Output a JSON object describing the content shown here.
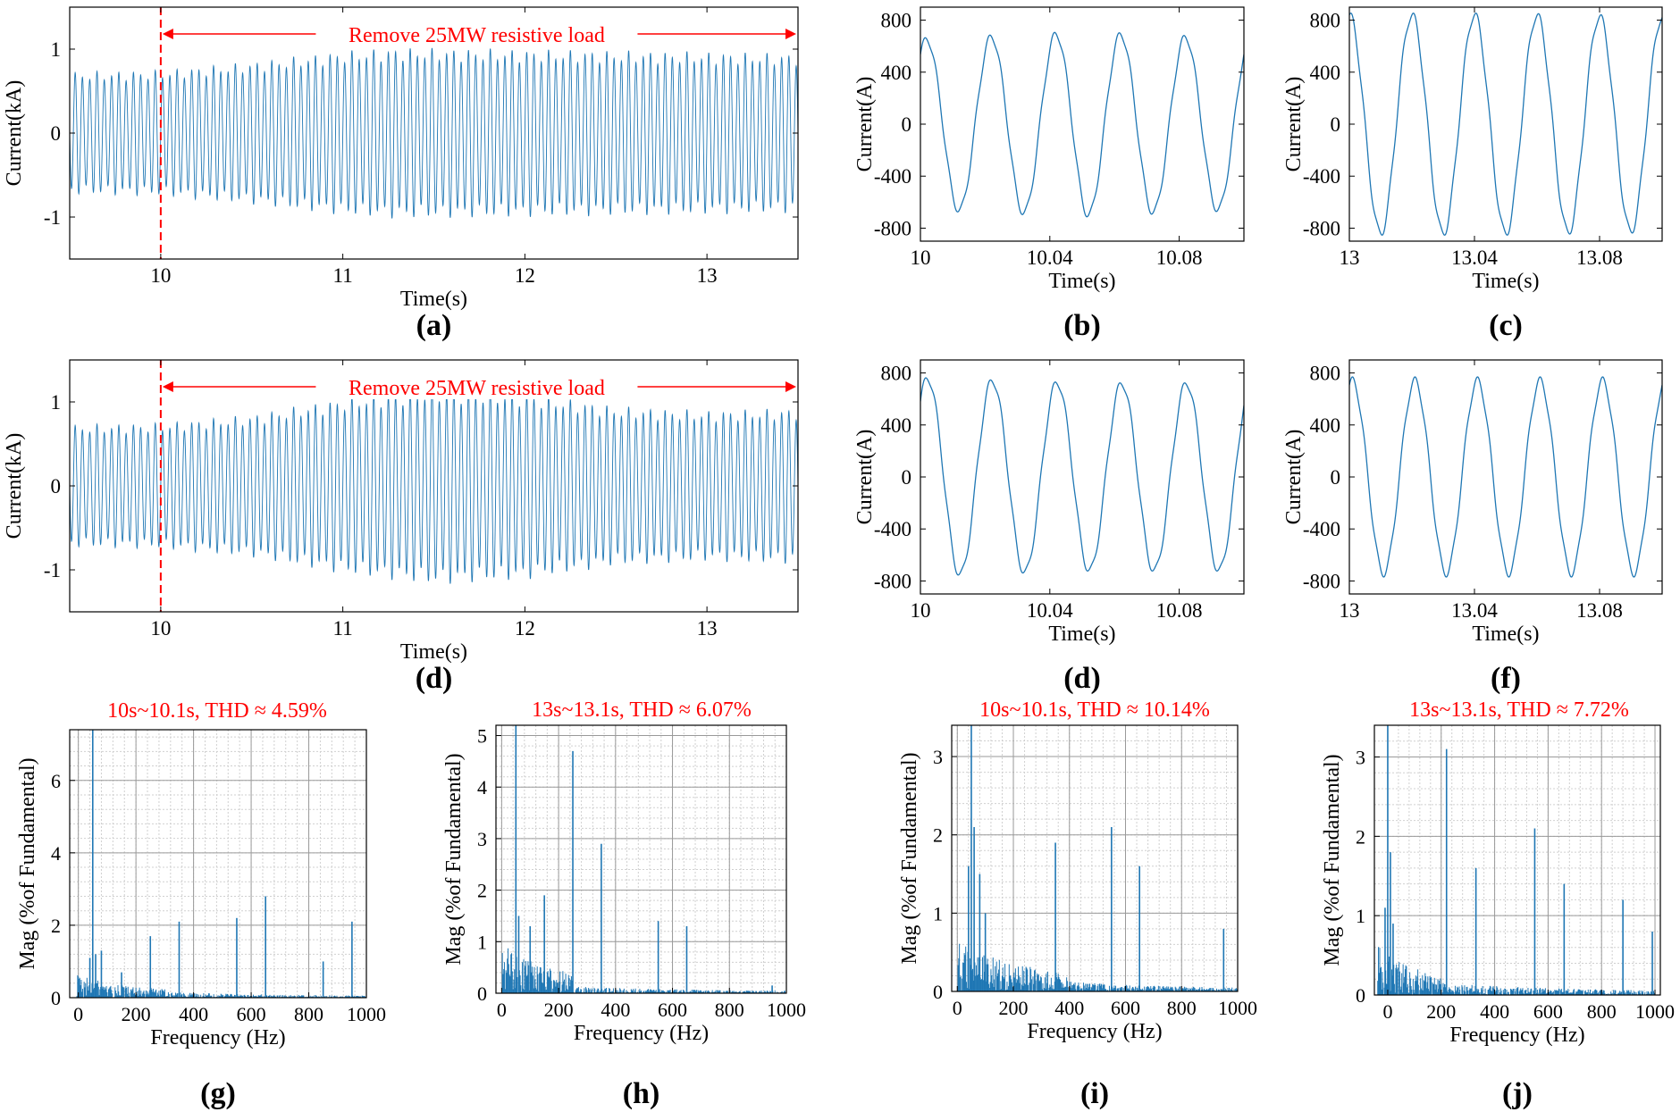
{
  "figure": {
    "wave_color": "#1f77b4",
    "annotation_color": "#ff0000"
  },
  "chart_data": [
    {
      "id": "a",
      "label": "(a)",
      "type": "line",
      "title": "",
      "xlabel": "Time(s)",
      "ylabel": "Current(kA)",
      "xlim": [
        9.5,
        13.5
      ],
      "ylim": [
        -1.5,
        1.5
      ],
      "xticks": [
        10,
        11,
        12,
        13
      ],
      "xtick_labels": [
        "10",
        "11",
        "12",
        "13"
      ],
      "yticks": [
        -1,
        0,
        1
      ],
      "ytick_labels": [
        "-1",
        "0",
        "1"
      ],
      "event_time": 10,
      "annotation": "Remove 25MW resistive load",
      "frequency_hz": 50,
      "envelope": {
        "x": [
          9.5,
          10.0,
          10.5,
          11.0,
          11.3,
          12.0,
          13.0,
          13.5
        ],
        "y": [
          0.73,
          0.75,
          0.85,
          0.98,
          1.02,
          1.0,
          0.97,
          0.95
        ]
      }
    },
    {
      "id": "b",
      "label": "(b)",
      "type": "line",
      "xlabel": "Time(s)",
      "ylabel": "Current(A)",
      "xlim": [
        10,
        10.1
      ],
      "ylim": [
        -900,
        900
      ],
      "xticks": [
        10,
        10.04,
        10.08
      ],
      "xtick_labels": [
        "10",
        "10.04",
        "10.08"
      ],
      "yticks": [
        -800,
        -400,
        0,
        400,
        800
      ],
      "ytick_labels": [
        "-800",
        "-400",
        "0",
        "400",
        "800"
      ],
      "frequency_hz": 50,
      "phase": 0.3,
      "envelope": {
        "x": [
          10,
          10.05,
          10.1
        ],
        "y": [
          650,
          700,
          650
        ]
      }
    },
    {
      "id": "c",
      "label": "(c)",
      "type": "line",
      "xlabel": "Time(s)",
      "ylabel": "Current(A)",
      "xlim": [
        13,
        13.1
      ],
      "ylim": [
        -900,
        900
      ],
      "xticks": [
        13,
        13.04,
        13.08
      ],
      "xtick_labels": [
        "13",
        "13.04",
        "13.08"
      ],
      "yticks": [
        -800,
        -400,
        0,
        400,
        800
      ],
      "ytick_labels": [
        "-800",
        "-400",
        "0",
        "400",
        "800"
      ],
      "frequency_hz": 50,
      "phase": 0.0,
      "envelope": {
        "x": [
          13,
          13.05,
          13.1
        ],
        "y": [
          840,
          840,
          820
        ]
      }
    },
    {
      "id": "d",
      "label": "(d)",
      "type": "line",
      "xlabel": "Time(s)",
      "ylabel": "Current(kA)",
      "xlim": [
        9.5,
        13.5
      ],
      "ylim": [
        -1.5,
        1.5
      ],
      "xticks": [
        10,
        11,
        12,
        13
      ],
      "xtick_labels": [
        "10",
        "11",
        "12",
        "13"
      ],
      "yticks": [
        -1,
        0,
        1
      ],
      "ytick_labels": [
        "-1",
        "0",
        "1"
      ],
      "event_time": 10,
      "annotation": "Remove 25MW resistive load",
      "frequency_hz": 50,
      "envelope": {
        "x": [
          9.5,
          10.0,
          10.5,
          11.0,
          11.5,
          12.0,
          12.5,
          13.0,
          13.5
        ],
        "y": [
          0.73,
          0.75,
          0.85,
          1.05,
          1.18,
          1.12,
          0.95,
          0.9,
          0.93
        ]
      }
    },
    {
      "id": "e",
      "label": "(d)",
      "type": "line",
      "xlabel": "Time(s)",
      "ylabel": "Current(A)",
      "xlim": [
        10,
        10.1
      ],
      "ylim": [
        -900,
        900
      ],
      "xticks": [
        10,
        10.04,
        10.08
      ],
      "xtick_labels": [
        "10",
        "10.04",
        "10.08"
      ],
      "yticks": [
        -800,
        -400,
        0,
        400,
        800
      ],
      "ytick_labels": [
        "-800",
        "-400",
        "0",
        "400",
        "800"
      ],
      "frequency_hz": 50,
      "phase": 0.35,
      "envelope": {
        "x": [
          10,
          10.05,
          10.1
        ],
        "y": [
          760,
          720,
          720
        ]
      }
    },
    {
      "id": "f",
      "label": "(f)",
      "type": "line",
      "xlabel": "Time(s)",
      "ylabel": "Current(A)",
      "xlim": [
        13,
        13.1
      ],
      "ylim": [
        -900,
        900
      ],
      "xticks": [
        13,
        13.04,
        13.08
      ],
      "xtick_labels": [
        "13",
        "13.04",
        "13.08"
      ],
      "yticks": [
        -800,
        -400,
        0,
        400,
        800
      ],
      "ytick_labels": [
        "-800",
        "-400",
        "0",
        "400",
        "800"
      ],
      "frequency_hz": 50,
      "phase": 0.15,
      "envelope": {
        "x": [
          13,
          13.05,
          13.1
        ],
        "y": [
          740,
          740,
          740
        ]
      }
    },
    {
      "id": "g",
      "label": "(g)",
      "type": "bar",
      "title": "10s~10.1s, THD ≈   4.59%",
      "xlabel": "Frequency (Hz)",
      "ylabel": "Mag (%of Fundamental)",
      "xlim": [
        -30,
        1000
      ],
      "ylim": [
        0,
        7.4
      ],
      "xticks": [
        0,
        200,
        400,
        600,
        800,
        1000
      ],
      "xtick_labels": [
        "0",
        "200",
        "400",
        "600",
        "800",
        "1000"
      ],
      "yticks": [
        0,
        2,
        4,
        6
      ],
      "ytick_labels": [
        "0",
        "2",
        "4",
        "6"
      ],
      "peaks": [
        [
          50,
          7.4
        ],
        [
          40,
          1.1
        ],
        [
          60,
          1.2
        ],
        [
          80,
          1.3
        ],
        [
          150,
          0.7
        ],
        [
          250,
          1.7
        ],
        [
          350,
          2.1
        ],
        [
          550,
          2.2
        ],
        [
          650,
          2.8
        ],
        [
          850,
          1.0
        ],
        [
          950,
          2.1
        ]
      ],
      "noise_region": [
        [
          -10,
          300,
          0.5
        ],
        [
          300,
          1000,
          0.12
        ]
      ]
    },
    {
      "id": "h",
      "label": "(h)",
      "type": "bar",
      "title": "13s~13.1s, THD ≈  6.07%",
      "xlabel": "Frequency (Hz)",
      "ylabel": "Mag (%of Fundamental)",
      "xlim": [
        -20,
        1000
      ],
      "ylim": [
        0,
        5.2
      ],
      "xticks": [
        0,
        200,
        400,
        600,
        800,
        1000
      ],
      "xtick_labels": [
        "0",
        "200",
        "400",
        "600",
        "800",
        "1000"
      ],
      "yticks": [
        0,
        1,
        2,
        3,
        4,
        5
      ],
      "ytick_labels": [
        "0",
        "1",
        "2",
        "3",
        "4",
        "5"
      ],
      "peaks": [
        [
          50,
          5.2
        ],
        [
          60,
          1.5
        ],
        [
          100,
          1.3
        ],
        [
          150,
          1.9
        ],
        [
          250,
          4.7
        ],
        [
          350,
          2.9
        ],
        [
          550,
          1.4
        ],
        [
          650,
          1.3
        ],
        [
          950,
          0.15
        ]
      ],
      "noise_region": [
        [
          0,
          250,
          0.8
        ],
        [
          250,
          1000,
          0.1
        ]
      ]
    },
    {
      "id": "i",
      "label": "(i)",
      "type": "bar",
      "title": "10s~10.1s, THD ≈   10.14%",
      "xlabel": "Frequency (Hz)",
      "ylabel": "Mag (%of Fundamental)",
      "xlim": [
        -20,
        1000
      ],
      "ylim": [
        0,
        3.4
      ],
      "xticks": [
        0,
        200,
        400,
        600,
        800,
        1000
      ],
      "xtick_labels": [
        "0",
        "200",
        "400",
        "600",
        "800",
        "1000"
      ],
      "yticks": [
        0,
        1,
        2,
        3
      ],
      "ytick_labels": [
        "0",
        "1",
        "2",
        "3"
      ],
      "peaks": [
        [
          50,
          3.4
        ],
        [
          60,
          2.1
        ],
        [
          40,
          1.6
        ],
        [
          80,
          1.5
        ],
        [
          100,
          1.0
        ],
        [
          350,
          1.9
        ],
        [
          550,
          2.1
        ],
        [
          650,
          1.6
        ],
        [
          950,
          0.8
        ]
      ],
      "noise_region": [
        [
          0,
          400,
          0.5
        ],
        [
          400,
          1000,
          0.1
        ]
      ]
    },
    {
      "id": "j",
      "label": "(j)",
      "type": "bar",
      "title": "13s~13.1s, THD ≈  7.72%",
      "xlabel": "Frequency (Hz)",
      "ylabel": "Mag (%of Fundamental)",
      "xlim": [
        -50,
        1020
      ],
      "ylim": [
        0,
        3.4
      ],
      "xticks": [
        0,
        200,
        400,
        600,
        800,
        1000
      ],
      "xtick_labels": [
        "0",
        "200",
        "400",
        "600",
        "800",
        "1000"
      ],
      "yticks": [
        0,
        1,
        2,
        3
      ],
      "ytick_labels": [
        "0",
        "1",
        "2",
        "3"
      ],
      "peaks": [
        [
          0,
          3.4
        ],
        [
          10,
          1.8
        ],
        [
          -10,
          1.1
        ],
        [
          20,
          0.9
        ],
        [
          220,
          3.1
        ],
        [
          330,
          1.6
        ],
        [
          550,
          2.1
        ],
        [
          660,
          1.4
        ],
        [
          880,
          1.2
        ],
        [
          990,
          0.8
        ]
      ],
      "noise_region": [
        [
          -40,
          200,
          0.5
        ],
        [
          200,
          1000,
          0.12
        ]
      ]
    }
  ]
}
